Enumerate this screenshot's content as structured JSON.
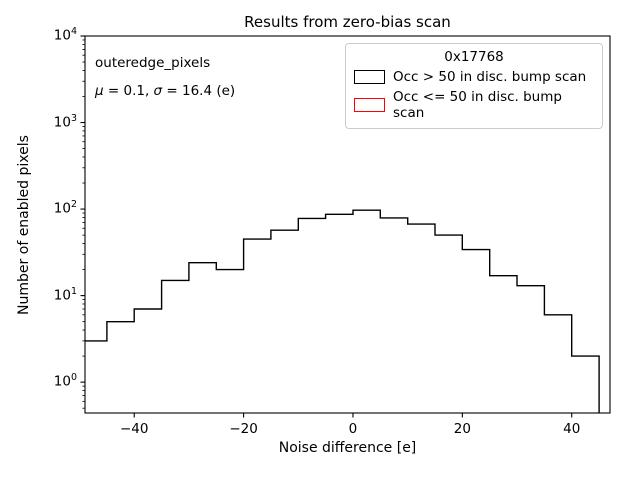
{
  "title": "Results from zero-bias scan",
  "annotation": {
    "line1": "outeredge_pixels",
    "line2_parts": [
      {
        "text": "μ",
        "italic": true
      },
      {
        "text": " = 0.1, ",
        "italic": false
      },
      {
        "text": "σ",
        "italic": true
      },
      {
        "text": " = 16.4 (e)",
        "italic": false
      }
    ]
  },
  "legend": {
    "title": "0x17768",
    "entries": [
      {
        "label": "Occ > 50 in disc. bump scan",
        "color": "#000000"
      },
      {
        "label": "Occ <= 50 in disc. bump scan",
        "color": "#ff0000"
      }
    ],
    "border_color": "#cccccc"
  },
  "chart_data": {
    "type": "bar",
    "subtype": "step-histogram",
    "title": "Results from zero-bias scan",
    "xlabel": "Noise difference [e]",
    "ylabel": "Number of enabled pixels",
    "yscale": "log",
    "xlim": [
      -49,
      47
    ],
    "ylim": [
      0.44,
      10000
    ],
    "xticks": [
      {
        "value": -40,
        "label": "−40"
      },
      {
        "value": -20,
        "label": "−20"
      },
      {
        "value": 0,
        "label": "0"
      },
      {
        "value": 20,
        "label": "20"
      },
      {
        "value": 40,
        "label": "40"
      }
    ],
    "yticks": [
      {
        "value": 1,
        "exponent": 0
      },
      {
        "value": 10,
        "exponent": 1
      },
      {
        "value": 100,
        "exponent": 2
      },
      {
        "value": 1000,
        "exponent": 3
      },
      {
        "value": 10000,
        "exponent": 4
      }
    ],
    "bin_edges": [
      -50,
      -45,
      -40,
      -35,
      -30,
      -25,
      -20,
      -15,
      -10,
      -5,
      0,
      5,
      10,
      15,
      20,
      25,
      30,
      35,
      40,
      45
    ],
    "series": [
      {
        "name": "Occ > 50 in disc. bump scan",
        "color": "#000000",
        "counts": [
          3,
          5,
          7,
          15,
          24,
          20,
          45,
          57,
          78,
          87,
          97,
          79,
          67,
          50,
          34,
          17,
          13,
          6,
          2
        ]
      },
      {
        "name": "Occ <= 50 in disc. bump scan",
        "color": "#ff0000",
        "counts": []
      }
    ],
    "axis_color": "#000000",
    "grid": false,
    "legend_position": "upper right"
  }
}
